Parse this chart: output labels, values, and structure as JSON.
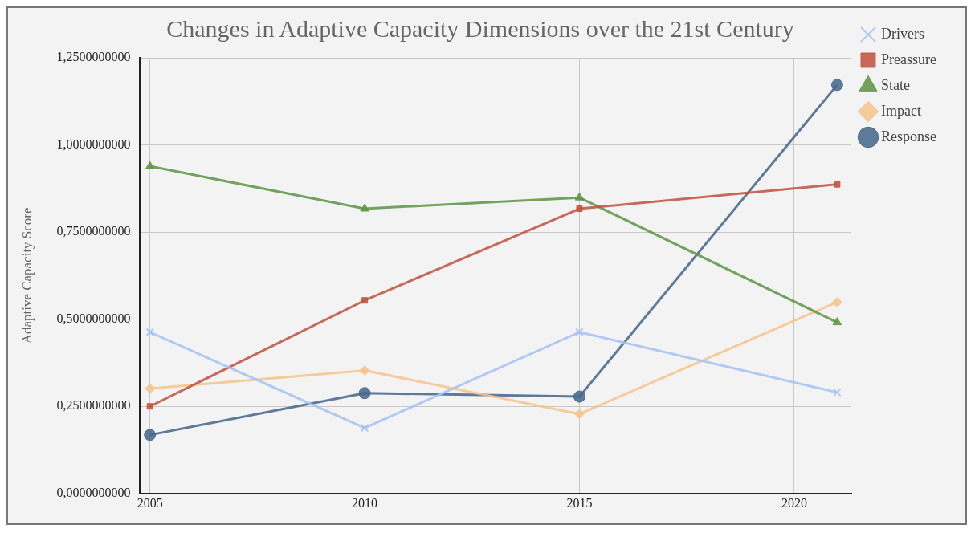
{
  "chart_data": {
    "type": "line",
    "title": "Changes in Adaptive Capacity Dimensions over the 21st Century",
    "ylabel": "Adaptive Capacity Score",
    "x": [
      2005,
      2010,
      2015,
      2021
    ],
    "series": [
      {
        "name": "Drivers",
        "color": "#a4c2f4",
        "marker": "cross",
        "values": [
          0.463,
          0.188,
          0.463,
          0.29
        ]
      },
      {
        "name": "Preassure",
        "color": "#c0533f",
        "marker": "square",
        "values": [
          0.25,
          0.554,
          0.817,
          0.887
        ]
      },
      {
        "name": "State",
        "color": "#5f9546",
        "marker": "triangle",
        "values": [
          0.939,
          0.817,
          0.849,
          0.491
        ]
      },
      {
        "name": "Impact",
        "color": "#f6c48c",
        "marker": "diamond",
        "values": [
          0.301,
          0.353,
          0.228,
          0.549
        ]
      },
      {
        "name": "Response",
        "color": "#456789",
        "marker": "circle",
        "values": [
          0.168,
          0.288,
          0.278,
          1.172
        ]
      }
    ],
    "xlim": [
      2004.77,
      2021.33
    ],
    "xticks": [
      2005,
      2010,
      2015,
      2020
    ],
    "ylim": [
      0,
      1.25
    ],
    "yticks": [
      {
        "value": 0,
        "label": "0,0000000000"
      },
      {
        "value": 0.25,
        "label": "0,2500000000"
      },
      {
        "value": 0.5,
        "label": "0,5000000000"
      },
      {
        "value": 0.75,
        "label": "0,7500000000"
      },
      {
        "value": 1,
        "label": "1,0000000000"
      },
      {
        "value": 1.25,
        "label": "1,2500000000"
      }
    ],
    "grid": true,
    "legend": "right",
    "line_style": "solid"
  }
}
